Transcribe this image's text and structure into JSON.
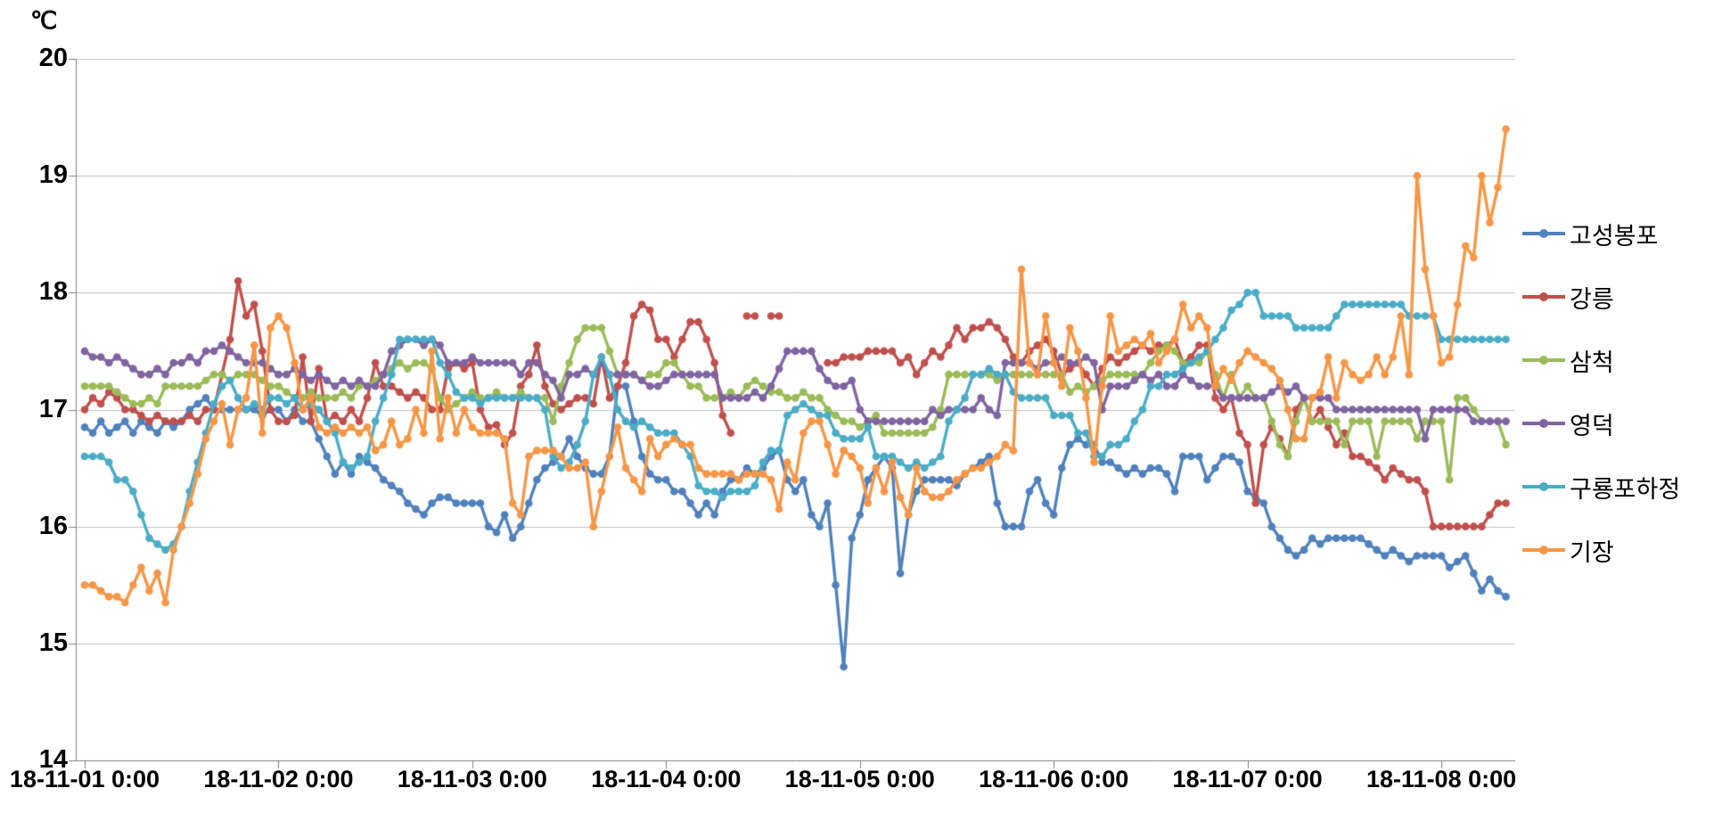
{
  "chart_data": {
    "type": "line",
    "title": "",
    "unit": "℃",
    "ylabel": "℃",
    "xlabel": "",
    "ylim": [
      14,
      20
    ],
    "yticks": [
      20,
      19,
      18,
      17,
      16,
      15,
      14
    ],
    "x_tick_labels": [
      "18-11-01 0:00",
      "18-11-02 0:00",
      "18-11-03 0:00",
      "18-11-04 0:00",
      "18-11-05 0:00",
      "18-11-06 0:00",
      "18-11-07 0:00",
      "18-11-08 0:00"
    ],
    "x_unit": "hours since 18-11-01 0:00, 1 point per hour",
    "hours_per_tick": 24,
    "grid": true,
    "legend_position": "right",
    "axis_color": "#808080",
    "grid_color": "#BFBFBF",
    "text_color": "#000000",
    "background_color": "#FFFFFF",
    "series": [
      {
        "name": "고성봉포",
        "color": "#4F81BD",
        "values": [
          16.85,
          16.8,
          16.9,
          16.8,
          16.85,
          16.9,
          16.8,
          16.9,
          16.85,
          16.8,
          16.9,
          16.85,
          16.9,
          17.0,
          17.05,
          17.1,
          17.0,
          17.0,
          17.0,
          17.0,
          17.0,
          17.0,
          16.95,
          17.0,
          17.0,
          16.9,
          17.0,
          16.9,
          16.9,
          16.75,
          16.6,
          16.45,
          16.55,
          16.45,
          16.6,
          16.55,
          16.5,
          16.4,
          16.35,
          16.3,
          16.2,
          16.15,
          16.1,
          16.2,
          16.25,
          16.25,
          16.2,
          16.2,
          16.2,
          16.2,
          16.0,
          15.95,
          16.1,
          15.9,
          16.0,
          16.2,
          16.4,
          16.5,
          16.55,
          16.6,
          16.75,
          16.6,
          16.5,
          16.45,
          16.45,
          16.6,
          17.2,
          17.2,
          16.9,
          16.6,
          16.45,
          16.4,
          16.4,
          16.3,
          16.3,
          16.2,
          16.1,
          16.2,
          16.1,
          16.3,
          16.4,
          16.4,
          16.5,
          16.45,
          16.5,
          16.6,
          16.65,
          16.4,
          16.3,
          16.4,
          16.1,
          16.0,
          16.2,
          15.5,
          14.8,
          15.9,
          16.1,
          16.4,
          16.5,
          16.6,
          16.5,
          15.6,
          16.1,
          16.3,
          16.4,
          16.4,
          16.4,
          16.4,
          16.35,
          16.45,
          16.5,
          16.55,
          16.6,
          16.2,
          16.0,
          16.0,
          16.0,
          16.3,
          16.4,
          16.2,
          16.1,
          16.5,
          16.7,
          16.75,
          16.7,
          16.7,
          16.55,
          16.55,
          16.5,
          16.45,
          16.5,
          16.45,
          16.5,
          16.5,
          16.45,
          16.3,
          16.6,
          16.6,
          16.6,
          16.4,
          16.5,
          16.6,
          16.6,
          16.55,
          16.3,
          16.25,
          16.2,
          16.0,
          15.9,
          15.8,
          15.75,
          15.8,
          15.9,
          15.85,
          15.9,
          15.9,
          15.9,
          15.9,
          15.9,
          15.85,
          15.8,
          15.75,
          15.8,
          15.75,
          15.7,
          15.75,
          15.75,
          15.75,
          15.75,
          15.65,
          15.7,
          15.75,
          15.6,
          15.45,
          15.55,
          15.45,
          15.4
        ]
      },
      {
        "name": "강릉",
        "color": "#C0504D",
        "values": [
          17.0,
          17.1,
          17.05,
          17.15,
          17.1,
          17.0,
          17.0,
          16.95,
          16.9,
          16.95,
          16.9,
          16.9,
          16.9,
          16.95,
          16.9,
          17.0,
          17.0,
          17.3,
          17.6,
          18.1,
          17.8,
          17.9,
          17.5,
          17.0,
          16.9,
          16.9,
          16.95,
          17.45,
          16.9,
          17.35,
          16.9,
          16.95,
          16.9,
          17.0,
          16.9,
          17.1,
          17.4,
          17.2,
          17.2,
          17.15,
          17.1,
          17.15,
          17.1,
          17.0,
          17.0,
          17.35,
          17.4,
          17.35,
          17.4,
          17.0,
          16.85,
          16.87,
          16.7,
          16.8,
          17.2,
          17.3,
          17.55,
          17.2,
          17.05,
          17.0,
          17.05,
          17.1,
          17.1,
          17.05,
          17.45,
          17.1,
          17.2,
          17.4,
          17.8,
          17.9,
          17.85,
          17.6,
          17.6,
          17.45,
          17.6,
          17.75,
          17.75,
          17.6,
          17.4,
          16.95,
          16.8,
          null,
          17.8,
          17.8,
          null,
          17.8,
          17.8,
          null,
          null,
          null,
          null,
          null,
          17.4,
          17.4,
          17.45,
          17.45,
          17.45,
          17.5,
          17.5,
          17.5,
          17.5,
          17.4,
          17.45,
          17.3,
          17.4,
          17.5,
          17.45,
          17.55,
          17.7,
          17.6,
          17.7,
          17.7,
          17.75,
          17.7,
          17.6,
          17.45,
          17.4,
          17.5,
          17.55,
          17.6,
          17.5,
          17.3,
          17.35,
          17.4,
          17.3,
          17.2,
          17.35,
          17.45,
          17.4,
          17.45,
          17.5,
          17.55,
          17.5,
          17.55,
          17.55,
          17.6,
          17.4,
          17.45,
          17.55,
          17.55,
          17.1,
          17.0,
          17.1,
          16.8,
          16.7,
          16.2,
          16.7,
          16.85,
          16.75,
          16.6,
          17.0,
          17.1,
          16.9,
          17.0,
          16.85,
          16.7,
          16.8,
          16.6,
          16.6,
          16.55,
          16.5,
          16.4,
          16.5,
          16.45,
          16.4,
          16.4,
          16.3,
          16.0,
          16.0,
          16.0,
          16.0,
          16.0,
          16.0,
          16.0,
          16.1,
          16.2,
          16.2
        ]
      },
      {
        "name": "삼척",
        "color": "#9BBB59",
        "values": [
          17.2,
          17.2,
          17.2,
          17.2,
          17.15,
          17.1,
          17.05,
          17.05,
          17.1,
          17.05,
          17.2,
          17.2,
          17.2,
          17.2,
          17.2,
          17.25,
          17.3,
          17.3,
          17.25,
          17.3,
          17.3,
          17.3,
          17.25,
          17.2,
          17.2,
          17.15,
          17.1,
          17.1,
          17.15,
          17.1,
          17.1,
          17.1,
          17.15,
          17.1,
          17.2,
          17.2,
          17.25,
          17.3,
          17.35,
          17.4,
          17.35,
          17.4,
          17.4,
          17.35,
          17.1,
          17.0,
          17.05,
          17.1,
          17.15,
          17.1,
          17.1,
          17.15,
          17.1,
          17.1,
          17.15,
          17.1,
          17.1,
          17.1,
          16.9,
          17.2,
          17.4,
          17.6,
          17.7,
          17.7,
          17.7,
          17.5,
          17.3,
          17.3,
          17.3,
          17.25,
          17.3,
          17.3,
          17.4,
          17.4,
          17.3,
          17.2,
          17.2,
          17.1,
          17.1,
          17.1,
          17.15,
          17.1,
          17.2,
          17.25,
          17.2,
          17.15,
          17.15,
          17.1,
          17.1,
          17.15,
          17.1,
          17.1,
          17.0,
          16.95,
          16.9,
          16.9,
          16.85,
          16.9,
          16.95,
          16.8,
          16.8,
          16.8,
          16.8,
          16.8,
          16.8,
          16.85,
          17.0,
          17.3,
          17.3,
          17.3,
          17.3,
          17.3,
          17.3,
          17.25,
          17.3,
          17.3,
          17.3,
          17.3,
          17.3,
          17.3,
          17.3,
          17.3,
          17.15,
          17.2,
          17.15,
          17.2,
          17.25,
          17.3,
          17.3,
          17.3,
          17.3,
          17.3,
          17.4,
          17.5,
          17.55,
          17.5,
          17.4,
          17.4,
          17.4,
          17.5,
          17.3,
          17.1,
          17.3,
          17.1,
          17.2,
          17.1,
          17.1,
          16.9,
          16.7,
          16.6,
          16.9,
          17.1,
          16.9,
          16.9,
          16.9,
          16.9,
          16.7,
          16.9,
          16.9,
          16.9,
          16.6,
          16.9,
          16.9,
          16.9,
          16.9,
          16.75,
          16.9,
          16.9,
          16.9,
          16.4,
          17.1,
          17.1,
          17.0,
          16.9,
          16.9,
          16.9,
          16.7
        ]
      },
      {
        "name": "영덕",
        "color": "#8064A2",
        "values": [
          17.5,
          17.45,
          17.45,
          17.4,
          17.45,
          17.4,
          17.35,
          17.3,
          17.3,
          17.35,
          17.3,
          17.4,
          17.4,
          17.45,
          17.4,
          17.5,
          17.5,
          17.55,
          17.5,
          17.45,
          17.4,
          17.4,
          17.4,
          17.35,
          17.3,
          17.3,
          17.35,
          17.3,
          17.25,
          17.3,
          17.25,
          17.2,
          17.25,
          17.2,
          17.25,
          17.2,
          17.2,
          17.3,
          17.5,
          17.55,
          17.6,
          17.6,
          17.55,
          17.6,
          17.55,
          17.4,
          17.4,
          17.4,
          17.45,
          17.4,
          17.4,
          17.4,
          17.4,
          17.4,
          17.3,
          17.4,
          17.4,
          17.3,
          17.25,
          17.1,
          17.3,
          17.3,
          17.35,
          17.3,
          17.4,
          17.3,
          17.3,
          17.3,
          17.3,
          17.25,
          17.2,
          17.2,
          17.25,
          17.3,
          17.3,
          17.3,
          17.3,
          17.3,
          17.3,
          17.1,
          17.1,
          17.1,
          17.1,
          17.15,
          17.1,
          17.2,
          17.35,
          17.5,
          17.5,
          17.5,
          17.5,
          17.35,
          17.25,
          17.2,
          17.2,
          17.25,
          17.0,
          16.9,
          16.9,
          16.9,
          16.9,
          16.9,
          16.9,
          16.9,
          16.9,
          17.0,
          16.95,
          17.0,
          17.0,
          17.0,
          17.0,
          17.1,
          17.0,
          16.95,
          17.4,
          17.4,
          17.4,
          17.4,
          17.35,
          17.4,
          17.4,
          17.45,
          17.4,
          17.4,
          17.45,
          17.4,
          17.0,
          17.2,
          17.2,
          17.2,
          17.25,
          17.3,
          17.25,
          17.3,
          17.2,
          17.2,
          17.3,
          17.25,
          17.2,
          17.2,
          17.2,
          17.1,
          17.1,
          17.1,
          17.1,
          17.1,
          17.1,
          17.15,
          17.2,
          17.15,
          17.2,
          17.1,
          17.1,
          17.1,
          17.1,
          17.0,
          17.0,
          17.0,
          17.0,
          17.0,
          17.0,
          17.0,
          17.0,
          17.0,
          17.0,
          17.0,
          16.75,
          17.0,
          17.0,
          17.0,
          17.0,
          17.0,
          16.9,
          16.9,
          16.9,
          16.9,
          16.9
        ]
      },
      {
        "name": "구룡포하정",
        "color": "#4BACC6",
        "values": [
          16.6,
          16.6,
          16.6,
          16.55,
          16.4,
          16.4,
          16.3,
          16.1,
          15.9,
          15.85,
          15.8,
          15.85,
          16.0,
          16.3,
          16.55,
          16.8,
          17.05,
          17.2,
          17.25,
          17.1,
          17.0,
          17.05,
          17.0,
          17.1,
          17.1,
          17.05,
          17.1,
          17.0,
          17.05,
          17.0,
          16.9,
          16.8,
          16.55,
          16.5,
          16.55,
          16.6,
          16.9,
          17.1,
          17.3,
          17.6,
          17.6,
          17.6,
          17.6,
          17.6,
          17.4,
          17.3,
          17.15,
          17.1,
          17.1,
          17.05,
          17.1,
          17.1,
          17.1,
          17.1,
          17.1,
          17.1,
          17.1,
          17.0,
          16.6,
          16.5,
          16.55,
          16.7,
          16.9,
          17.3,
          17.45,
          17.3,
          17.0,
          16.9,
          16.85,
          16.9,
          16.85,
          16.8,
          16.8,
          16.8,
          16.7,
          16.6,
          16.35,
          16.3,
          16.3,
          16.25,
          16.3,
          16.3,
          16.3,
          16.35,
          16.55,
          16.65,
          16.65,
          16.95,
          17.0,
          17.05,
          17.0,
          16.95,
          16.95,
          16.8,
          16.75,
          16.75,
          16.75,
          16.85,
          16.6,
          16.6,
          16.6,
          16.55,
          16.5,
          16.55,
          16.5,
          16.55,
          16.6,
          16.9,
          17.0,
          17.1,
          17.3,
          17.3,
          17.35,
          17.3,
          17.3,
          17.15,
          17.1,
          17.1,
          17.1,
          17.1,
          16.95,
          16.95,
          16.95,
          16.8,
          16.8,
          16.6,
          16.6,
          16.7,
          16.7,
          16.75,
          16.9,
          17.0,
          17.2,
          17.2,
          17.3,
          17.3,
          17.35,
          17.4,
          17.45,
          17.5,
          17.6,
          17.7,
          17.85,
          17.9,
          18.0,
          18.0,
          17.8,
          17.8,
          17.8,
          17.8,
          17.7,
          17.7,
          17.7,
          17.7,
          17.7,
          17.8,
          17.9,
          17.9,
          17.9,
          17.9,
          17.9,
          17.9,
          17.9,
          17.9,
          17.8,
          17.8,
          17.8,
          17.8,
          17.6,
          17.6,
          17.6,
          17.6,
          17.6,
          17.6,
          17.6,
          17.6,
          17.6
        ]
      },
      {
        "name": "기장",
        "color": "#F79646",
        "values": [
          15.5,
          15.5,
          15.45,
          15.4,
          15.4,
          15.35,
          15.5,
          15.65,
          15.45,
          15.6,
          15.35,
          15.8,
          16.0,
          16.2,
          16.45,
          16.75,
          16.9,
          17.05,
          16.7,
          17.0,
          17.1,
          17.55,
          16.8,
          17.7,
          17.8,
          17.7,
          17.4,
          17.0,
          17.1,
          16.85,
          16.8,
          16.85,
          16.8,
          16.85,
          16.8,
          16.85,
          16.65,
          16.7,
          16.9,
          16.7,
          16.75,
          17.0,
          16.8,
          17.5,
          16.75,
          17.1,
          16.8,
          17.0,
          16.85,
          16.8,
          16.8,
          16.8,
          16.75,
          16.2,
          16.1,
          16.6,
          16.65,
          16.65,
          16.65,
          16.6,
          16.5,
          16.5,
          16.55,
          16.0,
          16.3,
          16.6,
          16.85,
          16.5,
          16.4,
          16.3,
          16.75,
          16.6,
          16.7,
          16.75,
          16.7,
          16.7,
          16.5,
          16.45,
          16.45,
          16.45,
          16.45,
          16.4,
          16.45,
          16.45,
          16.45,
          16.4,
          16.15,
          16.55,
          16.4,
          16.8,
          16.9,
          16.9,
          16.7,
          16.45,
          16.65,
          16.6,
          16.5,
          16.2,
          16.5,
          16.3,
          16.55,
          16.25,
          16.1,
          16.5,
          16.3,
          16.25,
          16.25,
          16.3,
          16.4,
          16.45,
          16.5,
          16.5,
          16.55,
          16.6,
          16.7,
          16.65,
          18.2,
          17.4,
          17.3,
          17.8,
          17.4,
          17.2,
          17.7,
          17.5,
          17.1,
          16.55,
          17.2,
          17.8,
          17.5,
          17.55,
          17.6,
          17.55,
          17.65,
          17.4,
          17.5,
          17.6,
          17.9,
          17.7,
          17.8,
          17.7,
          17.2,
          17.35,
          17.25,
          17.4,
          17.5,
          17.45,
          17.4,
          17.35,
          17.25,
          17.0,
          16.75,
          16.75,
          17.1,
          17.15,
          17.45,
          17.1,
          17.4,
          17.3,
          17.25,
          17.3,
          17.45,
          17.3,
          17.45,
          17.8,
          17.3,
          19.0,
          18.2,
          17.8,
          17.4,
          17.45,
          17.9,
          18.4,
          18.3,
          19.0,
          18.6,
          18.9,
          19.4
        ]
      }
    ]
  }
}
